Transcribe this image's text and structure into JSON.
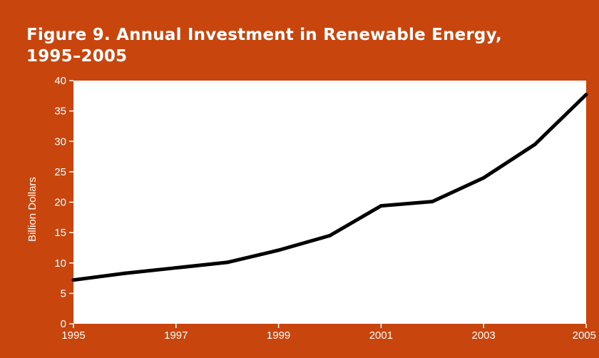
{
  "figure": {
    "title_line1": "Figure 9. Annual Investment in Renewable Energy,",
    "title_line2": "1995–2005"
  },
  "colors": {
    "background": "#c8460e",
    "plot_area": "#ffffff",
    "line": "#000000",
    "text": "#ffffff"
  },
  "chart_data": {
    "type": "line",
    "title": "Figure 9. Annual Investment in Renewable Energy, 1995–2005",
    "xlabel": "",
    "ylabel": "Billion Dollars",
    "xlim": [
      1995,
      2005
    ],
    "ylim": [
      0,
      40
    ],
    "x_ticks": [
      "1995",
      "1997",
      "1999",
      "2001",
      "2003",
      "2005"
    ],
    "y_ticks": [
      "0",
      "5",
      "10",
      "15",
      "20",
      "25",
      "30",
      "35",
      "40"
    ],
    "grid": false,
    "series": [
      {
        "x": [
          1995,
          1996,
          1997,
          1998,
          1999,
          2000,
          2001,
          2002,
          2003,
          2004,
          2005
        ],
        "values": [
          7.2,
          8.3,
          9.2,
          10.1,
          12.1,
          14.5,
          19.4,
          20.1,
          24.0,
          29.5,
          37.7
        ]
      }
    ]
  }
}
